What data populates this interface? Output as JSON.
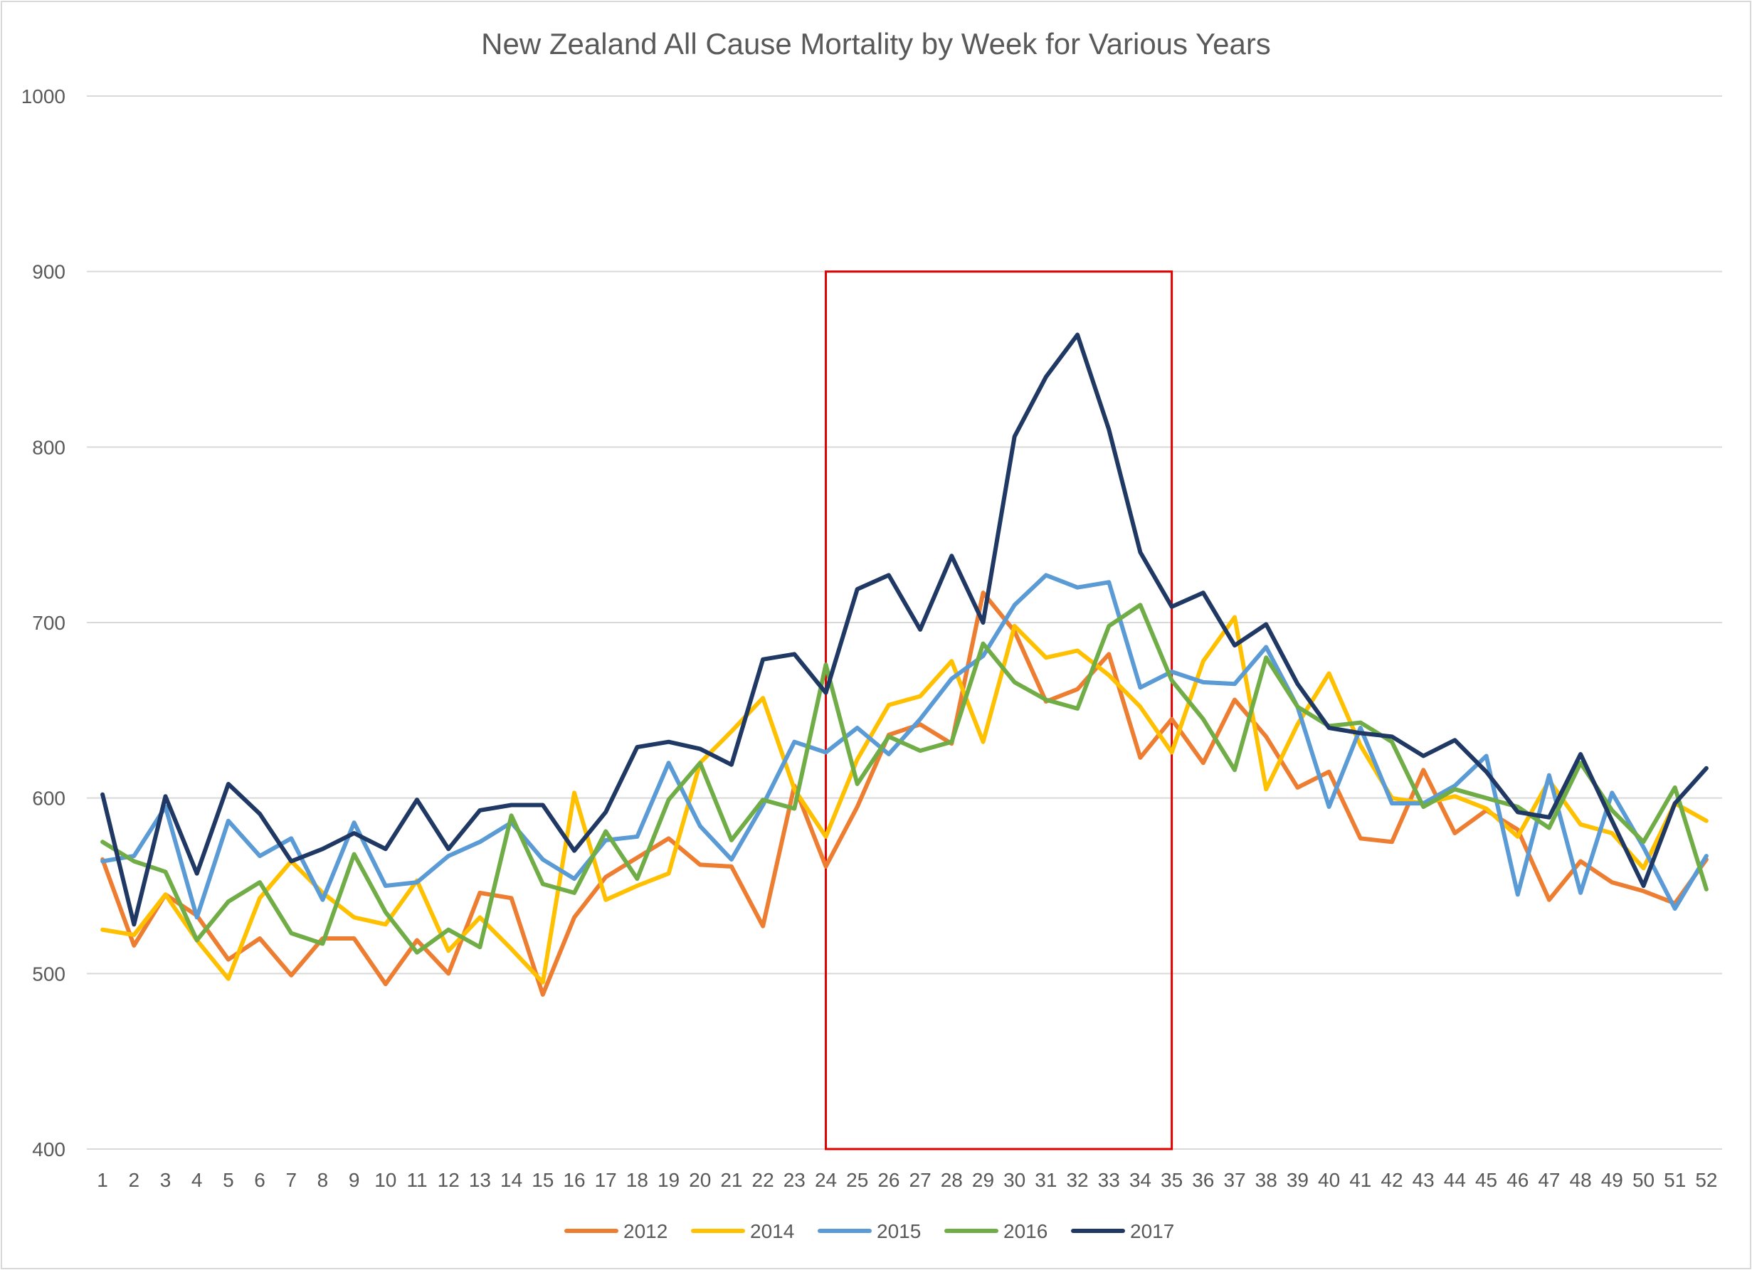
{
  "chart_data": {
    "type": "line",
    "title": "New Zealand All Cause Mortality by Week for Various Years",
    "xlabel": "",
    "ylabel": "",
    "ylim": [
      400,
      1000
    ],
    "yticks": [
      400,
      500,
      600,
      700,
      800,
      900,
      1000
    ],
    "categories": [
      "1",
      "2",
      "3",
      "4",
      "5",
      "6",
      "7",
      "8",
      "9",
      "10",
      "11",
      "12",
      "13",
      "14",
      "15",
      "16",
      "17",
      "18",
      "19",
      "20",
      "21",
      "22",
      "23",
      "24",
      "25",
      "26",
      "27",
      "28",
      "29",
      "30",
      "31",
      "32",
      "33",
      "34",
      "35",
      "36",
      "37",
      "38",
      "39",
      "40",
      "41",
      "42",
      "43",
      "44",
      "45",
      "46",
      "47",
      "48",
      "49",
      "50",
      "51",
      "52"
    ],
    "grid": true,
    "legend_position": "bottom",
    "highlight_box": {
      "x_from": 24,
      "x_to": 35,
      "y_from": 400,
      "y_to": 900,
      "color": "#e00000"
    },
    "series": [
      {
        "name": "2012",
        "color": "#ed7d31",
        "values": [
          565,
          516,
          545,
          533,
          508,
          520,
          499,
          520,
          520,
          494,
          519,
          500,
          546,
          543,
          488,
          532,
          555,
          566,
          577,
          562,
          561,
          527,
          607,
          561,
          595,
          636,
          642,
          631,
          717,
          695,
          655,
          662,
          682,
          623,
          645,
          620,
          656,
          635,
          606,
          615,
          577,
          575,
          616,
          580,
          593,
          582,
          542,
          564,
          552,
          547,
          540,
          565
        ]
      },
      {
        "name": "2014",
        "color": "#ffc000",
        "values": [
          525,
          522,
          545,
          519,
          497,
          543,
          564,
          546,
          532,
          528,
          553,
          513,
          532,
          514,
          495,
          603,
          542,
          550,
          557,
          620,
          638,
          657,
          605,
          578,
          622,
          653,
          658,
          678,
          632,
          698,
          680,
          684,
          670,
          652,
          626,
          678,
          703,
          605,
          642,
          671,
          630,
          600,
          597,
          601,
          594,
          578,
          610,
          585,
          580,
          560,
          597,
          587
        ]
      },
      {
        "name": "2015",
        "color": "#5b9bd5",
        "values": [
          564,
          567,
          595,
          532,
          587,
          567,
          577,
          542,
          586,
          550,
          552,
          567,
          575,
          586,
          565,
          554,
          576,
          578,
          620,
          584,
          565,
          596,
          632,
          626,
          640,
          625,
          645,
          668,
          681,
          710,
          727,
          720,
          723,
          663,
          672,
          666,
          665,
          686,
          652,
          595,
          640,
          597,
          597,
          607,
          624,
          545,
          613,
          546,
          603,
          572,
          537,
          567
        ]
      },
      {
        "name": "2016",
        "color": "#70ad47",
        "values": [
          575,
          564,
          558,
          519,
          541,
          552,
          523,
          517,
          568,
          535,
          512,
          525,
          515,
          590,
          551,
          546,
          581,
          554,
          599,
          620,
          576,
          599,
          594,
          676,
          608,
          635,
          627,
          632,
          688,
          666,
          656,
          651,
          698,
          710,
          667,
          645,
          616,
          680,
          652,
          641,
          643,
          632,
          595,
          605,
          600,
          595,
          583,
          620,
          593,
          575,
          606,
          548
        ]
      },
      {
        "name": "2017",
        "color": "#203864",
        "values": [
          602,
          528,
          601,
          557,
          608,
          591,
          564,
          571,
          580,
          571,
          599,
          571,
          593,
          596,
          596,
          570,
          592,
          629,
          632,
          628,
          619,
          679,
          682,
          660,
          719,
          727,
          696,
          738,
          700,
          806,
          840,
          864,
          810,
          740,
          709,
          717,
          687,
          699,
          665,
          640,
          637,
          635,
          624,
          633,
          615,
          592,
          589,
          625,
          587,
          550,
          597,
          617
        ]
      }
    ]
  }
}
